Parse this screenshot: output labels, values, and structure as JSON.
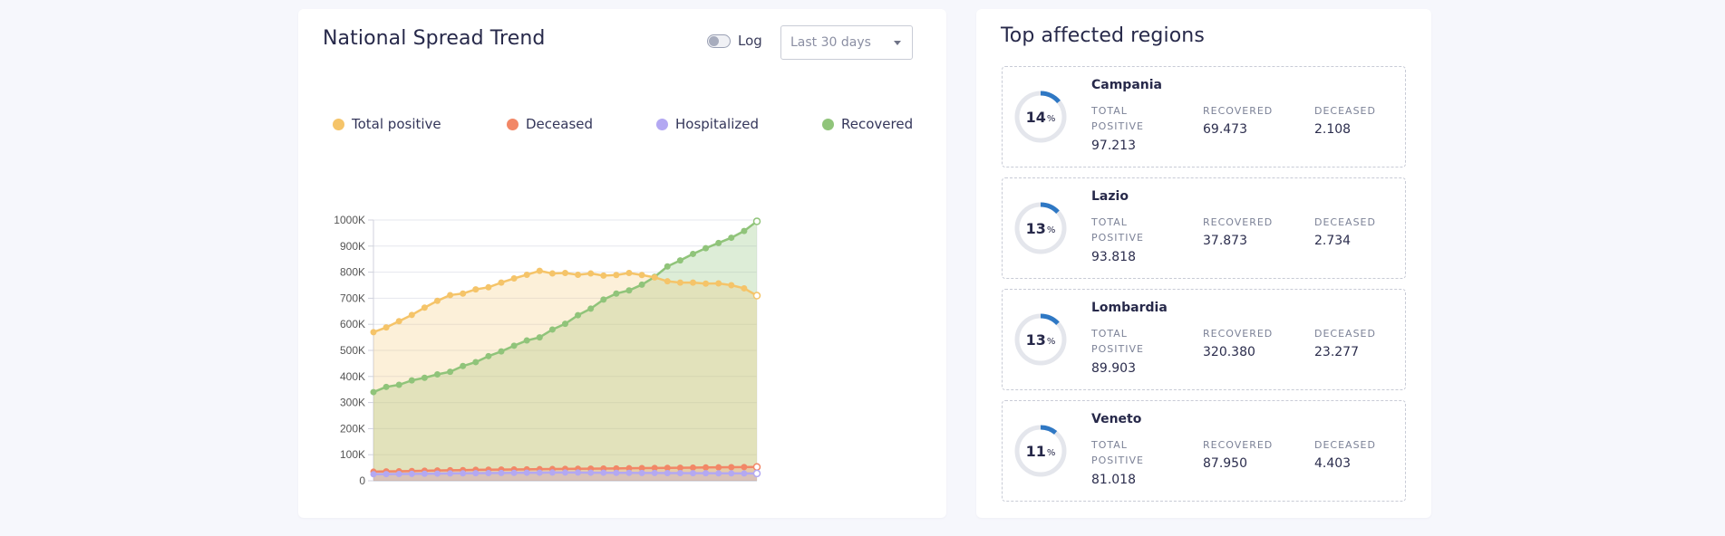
{
  "trend": {
    "title": "National Spread Trend",
    "log_label": "Log",
    "log_enabled": false,
    "range_value": "Last 30 days"
  },
  "chart_data": {
    "type": "area",
    "title": "National Spread Trend",
    "ylim": [
      0,
      1000000
    ],
    "yticks": [
      0,
      100000,
      200000,
      300000,
      400000,
      500000,
      600000,
      700000,
      800000,
      900000,
      1000000
    ],
    "ytick_labels": [
      "0",
      "100K",
      "200K",
      "300K",
      "400K",
      "500K",
      "600K",
      "700K",
      "800K",
      "900K",
      "1000K"
    ],
    "legend_position": "top",
    "grid": true,
    "points": 31,
    "series": [
      {
        "name": "Total positive",
        "color": "#f5c469",
        "fill": "rgba(245,196,105,0.25)",
        "values": [
          570000,
          588000,
          612000,
          636000,
          664000,
          690000,
          712000,
          718000,
          734000,
          742000,
          760000,
          776000,
          790000,
          805000,
          795000,
          797000,
          790000,
          795000,
          787000,
          789000,
          797000,
          789000,
          780000,
          765000,
          760000,
          760000,
          756000,
          757000,
          750000,
          738000,
          710000
        ]
      },
      {
        "name": "Deceased",
        "color": "#f28766",
        "fill": "rgba(242,135,102,0.25)",
        "values": [
          35000,
          36000,
          36500,
          37500,
          38500,
          39500,
          40500,
          41000,
          42000,
          42500,
          43000,
          43500,
          44000,
          44500,
          45000,
          45500,
          46000,
          46500,
          47000,
          47500,
          48000,
          48500,
          49000,
          49500,
          50000,
          50500,
          51000,
          51500,
          52000,
          52500,
          53000
        ]
      },
      {
        "name": "Hospitalized",
        "color": "#b3a8f2",
        "fill": "rgba(179,168,242,0.25)",
        "values": [
          25000,
          25500,
          26000,
          26500,
          27000,
          27500,
          28000,
          28500,
          29000,
          29500,
          30000,
          30500,
          31000,
          31000,
          31500,
          31500,
          31500,
          31000,
          31000,
          30500,
          30500,
          30000,
          30000,
          29500,
          29500,
          29000,
          29000,
          28500,
          28500,
          28000,
          28000
        ]
      },
      {
        "name": "Recovered",
        "color": "#90c47a",
        "fill": "rgba(144,196,122,0.30)",
        "values": [
          340000,
          360000,
          368000,
          385000,
          395000,
          408000,
          418000,
          440000,
          455000,
          478000,
          496000,
          518000,
          538000,
          550000,
          580000,
          602000,
          635000,
          660000,
          695000,
          718000,
          730000,
          752000,
          782000,
          822000,
          845000,
          870000,
          892000,
          912000,
          932000,
          958000,
          995000
        ]
      }
    ]
  },
  "regions": {
    "title": "Top affected regions",
    "labels": {
      "total": "TOTAL POSITIVE",
      "recovered": "RECOVERED",
      "deceased": "DECEASED"
    },
    "ring_color": "#2f78c4",
    "ring_track": "#e4e6ec",
    "items": [
      {
        "name": "Campania",
        "percent": "14",
        "percent_sign": "%",
        "share": 0.14,
        "total_positive": "97.213",
        "recovered": "69.473",
        "deceased": "2.108"
      },
      {
        "name": "Lazio",
        "percent": "13",
        "percent_sign": "%",
        "share": 0.13,
        "total_positive": "93.818",
        "recovered": "37.873",
        "deceased": "2.734"
      },
      {
        "name": "Lombardia",
        "percent": "13",
        "percent_sign": "%",
        "share": 0.13,
        "total_positive": "89.903",
        "recovered": "320.380",
        "deceased": "23.277"
      },
      {
        "name": "Veneto",
        "percent": "11",
        "percent_sign": "%",
        "share": 0.11,
        "total_positive": "81.018",
        "recovered": "87.950",
        "deceased": "4.403"
      }
    ]
  }
}
